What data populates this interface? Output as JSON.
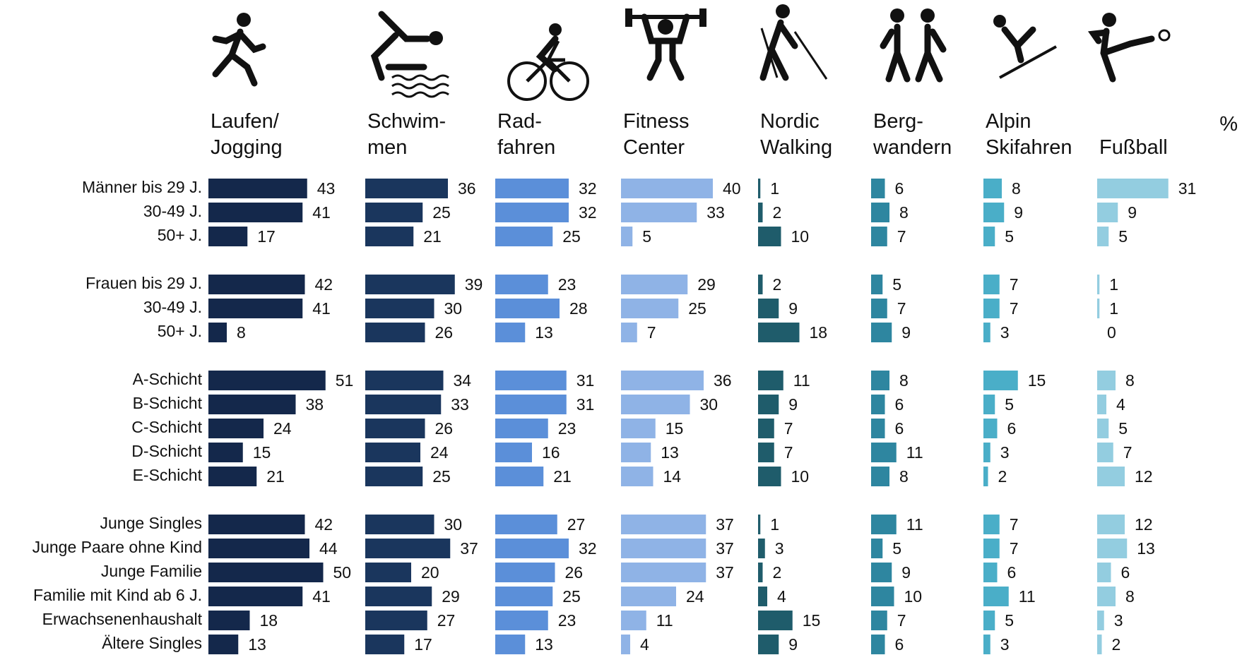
{
  "chart_data": {
    "type": "bar",
    "unit": "%",
    "categories": [
      "Männer bis 29 J.",
      "30-49 J.",
      "50+ J.",
      "Frauen bis 29 J.",
      "30-49 J.",
      "50+ J.",
      "A-Schicht",
      "B-Schicht",
      "C-Schicht",
      "D-Schicht",
      "E-Schicht",
      "Junge Singles",
      "Junge Paare ohne Kind",
      "Junge Familie",
      "Familie mit Kind ab 6 J.",
      "Erwachsenenhaushalt",
      "Ältere Singles"
    ],
    "series": [
      {
        "name": "Laufen/\nJogging",
        "color": "#14284b",
        "values": [
          43,
          41,
          17,
          42,
          41,
          8,
          51,
          38,
          24,
          15,
          21,
          42,
          44,
          50,
          41,
          18,
          13
        ]
      },
      {
        "name": "Schwim-\nmen",
        "color": "#1a365d",
        "values": [
          36,
          25,
          21,
          39,
          30,
          26,
          34,
          33,
          26,
          24,
          25,
          30,
          37,
          20,
          29,
          27,
          17
        ]
      },
      {
        "name": "Rad-\nfahren",
        "color": "#5b8fd9",
        "values": [
          32,
          32,
          25,
          23,
          28,
          13,
          31,
          31,
          23,
          16,
          21,
          27,
          32,
          26,
          25,
          23,
          13
        ]
      },
      {
        "name": "Fitness\nCenter",
        "color": "#8fb3e6",
        "values": [
          40,
          33,
          5,
          29,
          25,
          7,
          36,
          30,
          15,
          13,
          14,
          37,
          37,
          37,
          24,
          11,
          4
        ]
      },
      {
        "name": "Nordic\nWalking",
        "color": "#1f5c6b",
        "values": [
          1,
          2,
          10,
          2,
          9,
          18,
          11,
          9,
          7,
          7,
          10,
          1,
          3,
          2,
          4,
          15,
          9
        ]
      },
      {
        "name": "Berg-\nwandern",
        "color": "#2e86a0",
        "values": [
          6,
          8,
          7,
          5,
          7,
          9,
          8,
          6,
          6,
          11,
          8,
          11,
          5,
          9,
          10,
          7,
          6
        ]
      },
      {
        "name": "Alpin\nSkifahren",
        "color": "#4aaec8",
        "values": [
          8,
          9,
          5,
          7,
          7,
          3,
          15,
          5,
          6,
          3,
          2,
          7,
          7,
          6,
          11,
          5,
          3
        ]
      },
      {
        "name": "Fußball",
        "color": "#93cde0",
        "values": [
          31,
          9,
          5,
          1,
          1,
          0,
          8,
          4,
          5,
          7,
          12,
          12,
          13,
          6,
          8,
          3,
          2
        ]
      }
    ]
  }
}
